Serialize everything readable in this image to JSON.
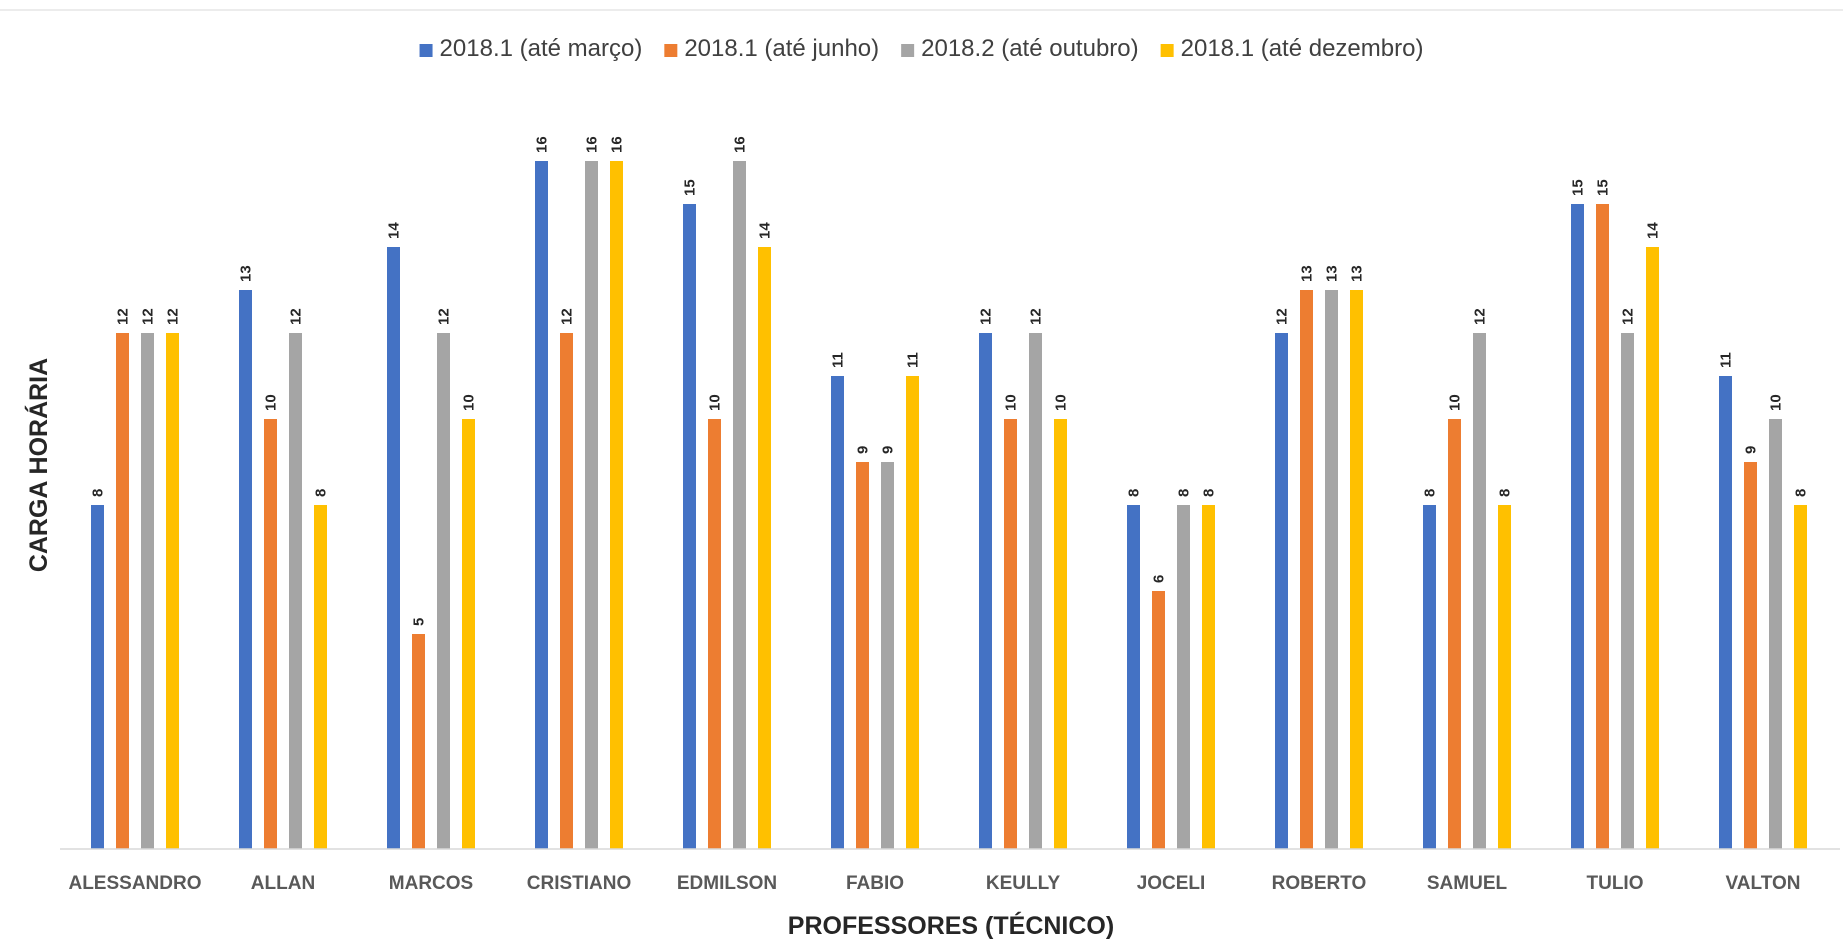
{
  "chart_data": {
    "type": "bar",
    "title": "",
    "xlabel": "PROFESSORES (TÉCNICO)",
    "ylabel": "CARGA HORÁRIA",
    "ylim": [
      0,
      17.5
    ],
    "grid": false,
    "legend_position": "top",
    "categories": [
      "ALESSANDRO",
      "ALLAN",
      "MARCOS",
      "CRISTIANO",
      "EDMILSON",
      "FABIO",
      "KEULLY",
      "JOCELI",
      "ROBERTO",
      "SAMUEL",
      "TULIO",
      "VALTON"
    ],
    "series": [
      {
        "name": "2018.1 (até março)",
        "color": "#4472c4",
        "values": [
          8,
          13,
          14,
          16,
          15,
          11,
          12,
          8,
          12,
          8,
          15,
          11
        ]
      },
      {
        "name": "2018.1 (até junho)",
        "color": "#ed7d31",
        "values": [
          12,
          10,
          5,
          12,
          10,
          9,
          10,
          6,
          13,
          10,
          15,
          9
        ]
      },
      {
        "name": "2018.2 (até outubro)",
        "color": "#a5a5a5",
        "values": [
          12,
          12,
          12,
          16,
          16,
          9,
          12,
          8,
          13,
          12,
          12,
          10
        ]
      },
      {
        "name": "2018.1 (até dezembro)",
        "color": "#ffc000",
        "values": [
          12,
          8,
          10,
          16,
          14,
          11,
          10,
          8,
          13,
          8,
          14,
          8
        ]
      }
    ]
  }
}
